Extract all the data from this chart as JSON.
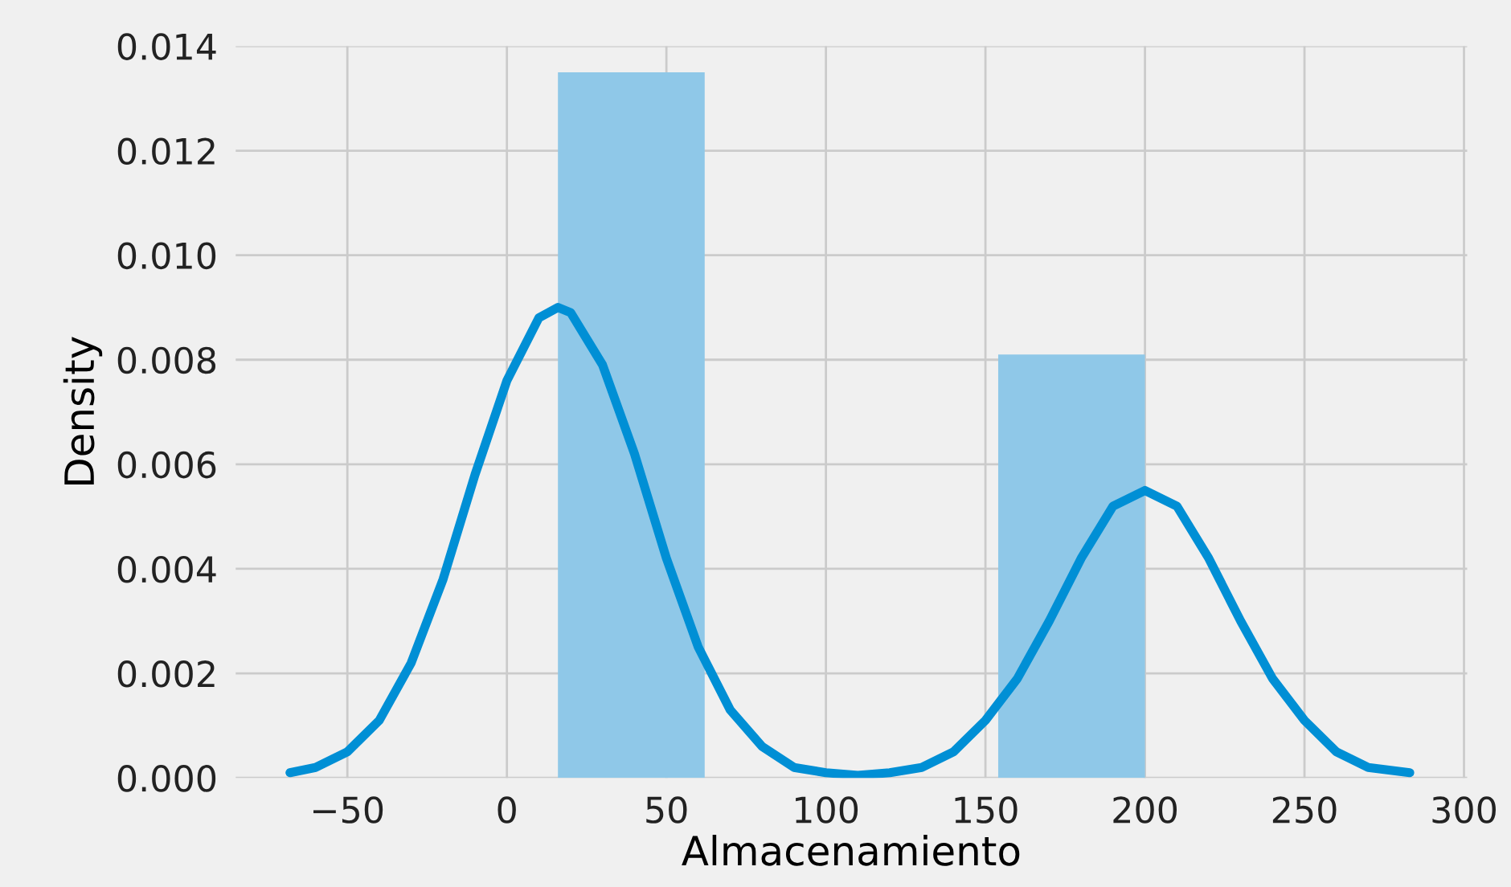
{
  "chart_data": {
    "type": "histogram",
    "xlabel": "Almacenamiento",
    "ylabel": "Density",
    "bins": [
      16,
      62,
      108,
      154,
      200
    ],
    "values": [
      0.0135,
      0,
      0,
      0.0081
    ],
    "color": "#8fc8e8",
    "series": [
      {
        "type": "line",
        "color": "#008fd5",
        "x": [
          -68,
          -60,
          -50,
          -40,
          -30,
          -20,
          -10,
          0,
          10,
          16,
          20,
          30,
          40,
          50,
          60,
          70,
          80,
          90,
          100,
          110,
          120,
          130,
          140,
          150,
          160,
          170,
          180,
          190,
          200,
          210,
          220,
          230,
          240,
          250,
          260,
          270,
          283
        ],
        "values": [
          0.0001,
          0.0002,
          0.0005,
          0.0011,
          0.0022,
          0.0038,
          0.0058,
          0.0076,
          0.0088,
          0.009,
          0.0089,
          0.0079,
          0.0062,
          0.0042,
          0.0025,
          0.0013,
          0.0006,
          0.0002,
          0.0001,
          5e-05,
          0.0001,
          0.0002,
          0.0005,
          0.0011,
          0.0019,
          0.003,
          0.0042,
          0.0052,
          0.0055,
          0.0052,
          0.0042,
          0.003,
          0.0019,
          0.0011,
          0.0005,
          0.0002,
          0.0001
        ]
      }
    ],
    "xlim": [
      -85,
      301
    ],
    "xticks": [
      {
        "value": -50,
        "label": "−50"
      },
      0,
      50,
      100,
      150,
      200,
      250,
      300
    ],
    "ylim": [
      0,
      0.014
    ],
    "yticks": [
      {
        "value": 0,
        "label": "0.000"
      },
      {
        "value": 0.002,
        "label": "0.002"
      },
      {
        "value": 0.004,
        "label": "0.004"
      },
      {
        "value": 0.006,
        "label": "0.006"
      },
      {
        "value": 0.008,
        "label": "0.008"
      },
      {
        "value": 0.01,
        "label": "0.010"
      },
      {
        "value": 0.012,
        "label": "0.012"
      },
      {
        "value": 0.014,
        "label": "0.014"
      }
    ],
    "grid": true
  }
}
